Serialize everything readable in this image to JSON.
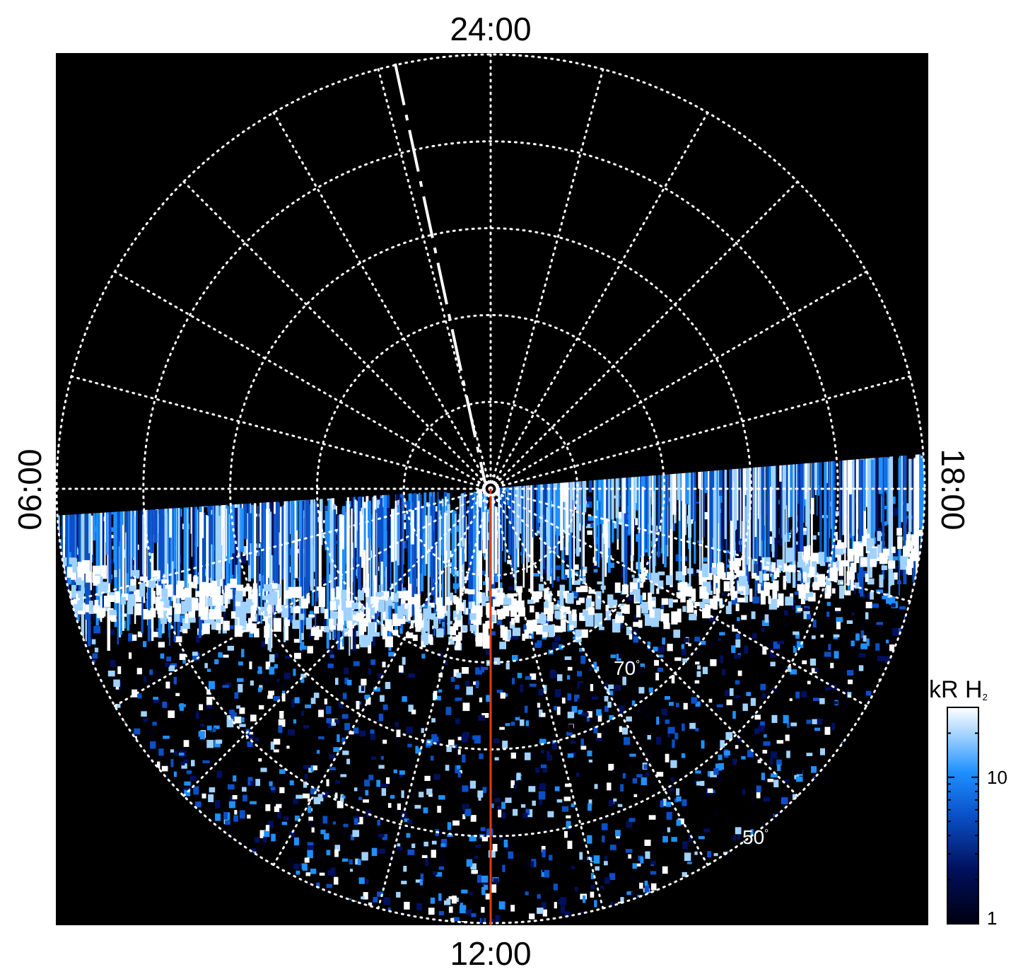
{
  "local_time_labels": {
    "top": "24:00",
    "bottom": "12:00",
    "left": "06:00",
    "right": "18:00"
  },
  "latitude_labels": {
    "inner": "70",
    "outer": "50",
    "degree_symbol": "°"
  },
  "colorbar": {
    "title_main": "kR H",
    "title_subscript": "2",
    "tick_labels": [
      "10",
      "1"
    ],
    "scale": "log",
    "range": [
      1,
      30
    ],
    "colors": [
      "#000010",
      "#00105c",
      "#0a50c8",
      "#1e90ff",
      "#a0d2ff",
      "#ffffff"
    ]
  },
  "colors": {
    "background": "#000000",
    "grid": "#ffffff",
    "meridian_line": "#e03c14"
  }
}
